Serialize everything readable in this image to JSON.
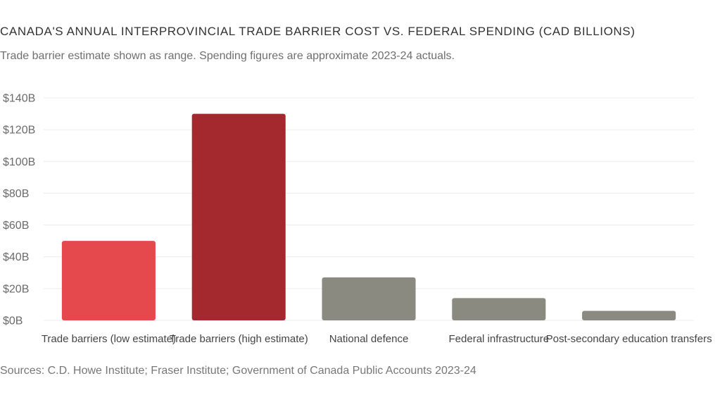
{
  "title": "CANADA'S ANNUAL INTERPROVINCIAL TRADE BARRIER COST VS. FEDERAL SPENDING (CAD BILLIONS)",
  "subtitle": "Trade barrier estimate shown as range. Spending figures are approximate 2023-24 actuals.",
  "source": "Sources: C.D. Howe Institute; Fraser Institute; Government of Canada Public Accounts 2023-24",
  "chart_data": {
    "type": "bar",
    "title": "CANADA'S ANNUAL INTERPROVINCIAL TRADE BARRIER COST VS. FEDERAL SPENDING (CAD BILLIONS)",
    "xlabel": "",
    "ylabel": "",
    "ylim": [
      0,
      140
    ],
    "yticks": [
      0,
      20,
      40,
      60,
      80,
      100,
      120,
      140
    ],
    "ytick_labels": [
      "$0B",
      "$20B",
      "$40B",
      "$60B",
      "$80B",
      "$100B",
      "$120B",
      "$140B"
    ],
    "grid": true,
    "categories": [
      "Trade barriers (low estimate)",
      "Trade barriers (high estimate)",
      "National defence",
      "Federal infrastructure",
      "Post-secondary education transfers"
    ],
    "values": [
      50,
      130,
      27,
      14,
      6
    ],
    "colors": [
      "#e5484d",
      "#a4292e",
      "#8a8a80",
      "#8a8a80",
      "#8a8a80"
    ]
  }
}
